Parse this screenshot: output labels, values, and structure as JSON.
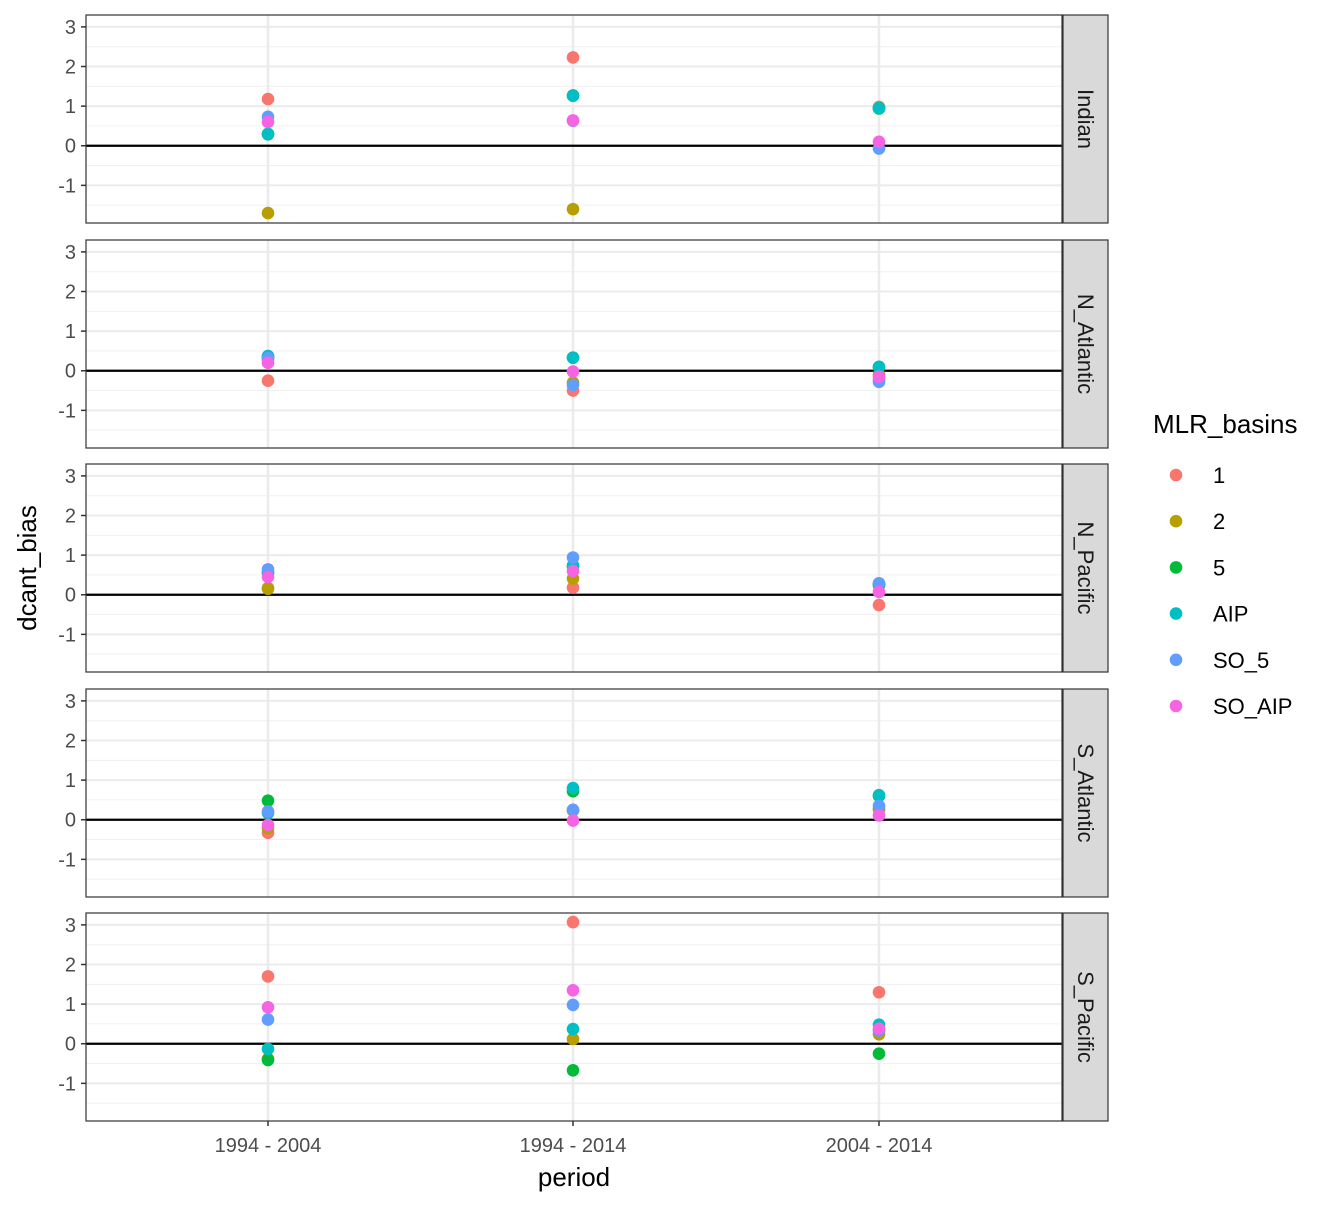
{
  "chart_data": {
    "type": "scatter",
    "xlabel": "period",
    "ylabel": "dcant_bias",
    "categories": [
      "1994 - 2004",
      "1994 - 2014",
      "2004 - 2014"
    ],
    "ylim": [
      -1.95,
      3.3
    ],
    "yticks": [
      -1,
      0,
      1,
      2,
      3
    ],
    "reference_line_y": 0,
    "grid": true,
    "facet_position": "right",
    "legend": {
      "title": "MLR_basins",
      "position": "right"
    },
    "series_colors": {
      "1": "#F8766D",
      "2": "#B79F00",
      "5": "#00BA38",
      "AIP": "#00BFC4",
      "SO_5": "#619CFF",
      "SO_AIP": "#F564E3"
    },
    "series": [
      {
        "name": "1"
      },
      {
        "name": "2"
      },
      {
        "name": "5"
      },
      {
        "name": "AIP"
      },
      {
        "name": "SO_5"
      },
      {
        "name": "SO_AIP"
      }
    ],
    "facets": [
      {
        "label": "Indian",
        "values": {
          "1": [
            1.18,
            2.23,
            0.98
          ],
          "2": [
            -1.7,
            -1.6,
            0.96
          ],
          "5": [
            0.29,
            1.27,
            0.94
          ],
          "AIP": [
            0.3,
            1.26,
            0.95
          ],
          "SO_5": [
            0.73,
            0.63,
            -0.07
          ],
          "SO_AIP": [
            0.6,
            0.64,
            0.1
          ]
        }
      },
      {
        "label": "N_Atlantic",
        "values": {
          "1": [
            -0.25,
            -0.5,
            -0.22
          ],
          "2": [
            0.29,
            -0.3,
            -0.1
          ],
          "5": [
            0.36,
            0.33,
            0.09
          ],
          "AIP": [
            0.37,
            0.33,
            0.1
          ],
          "SO_5": [
            0.32,
            -0.36,
            -0.28
          ],
          "SO_AIP": [
            0.2,
            -0.02,
            -0.15
          ]
        }
      },
      {
        "label": "N_Pacific",
        "values": {
          "1": [
            0.17,
            0.18,
            -0.26
          ],
          "2": [
            0.15,
            0.41,
            0.24
          ],
          "5": [
            0.55,
            0.71,
            0.25
          ],
          "AIP": [
            0.57,
            0.74,
            0.27
          ],
          "SO_5": [
            0.64,
            0.94,
            0.29
          ],
          "SO_AIP": [
            0.45,
            0.6,
            0.07
          ]
        }
      },
      {
        "label": "S_Atlantic",
        "values": {
          "1": [
            -0.33,
            0.23,
            0.26
          ],
          "2": [
            -0.21,
            0.24,
            0.28
          ],
          "5": [
            0.48,
            0.72,
            0.6
          ],
          "AIP": [
            0.17,
            0.8,
            0.62
          ],
          "SO_5": [
            0.21,
            0.25,
            0.35
          ],
          "SO_AIP": [
            -0.13,
            -0.02,
            0.11
          ]
        }
      },
      {
        "label": "S_Pacific",
        "values": {
          "1": [
            1.7,
            3.07,
            1.3
          ],
          "2": [
            -0.38,
            0.12,
            0.24
          ],
          "5": [
            -0.41,
            -0.67,
            -0.25
          ],
          "AIP": [
            -0.13,
            0.37,
            0.48
          ],
          "SO_5": [
            0.61,
            0.98,
            0.33
          ],
          "SO_AIP": [
            0.92,
            1.35,
            0.38
          ]
        }
      }
    ]
  }
}
